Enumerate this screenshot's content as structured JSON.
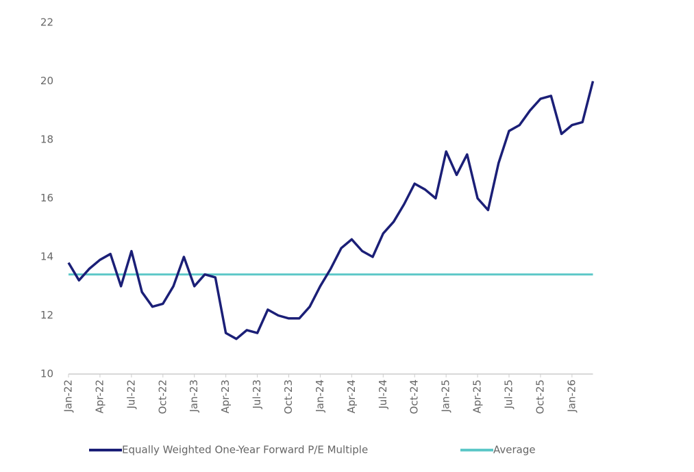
{
  "chart_data": {
    "type": "line",
    "x": [
      "2022-01",
      "2022-02",
      "2022-03",
      "2022-04",
      "2022-05",
      "2022-06",
      "2022-07",
      "2022-08",
      "2022-09",
      "2022-10",
      "2022-11",
      "2022-12",
      "2023-01",
      "2023-02",
      "2023-03",
      "2023-04",
      "2023-05",
      "2023-06",
      "2023-07",
      "2023-08",
      "2023-09",
      "2023-10",
      "2023-11",
      "2023-12",
      "2024-01",
      "2024-02",
      "2024-03",
      "2024-04",
      "2024-05",
      "2024-06",
      "2024-07",
      "2024-08",
      "2024-09",
      "2024-10",
      "2024-11",
      "2024-12",
      "2025-01",
      "2025-02",
      "2025-03",
      "2025-04",
      "2025-05",
      "2025-06",
      "2025-07",
      "2025-08",
      "2025-09",
      "2025-10",
      "2025-11",
      "2025-12",
      "2026-01",
      "2026-02",
      "2026-03"
    ],
    "series": [
      {
        "name": "Equally Weighted One-Year Forward P/E Multiple",
        "color": "#1b1f77",
        "width": 3.5,
        "values": [
          13.8,
          13.2,
          13.6,
          13.9,
          14.1,
          13.0,
          14.2,
          12.8,
          12.3,
          12.4,
          13.0,
          14.0,
          13.0,
          13.4,
          13.3,
          11.4,
          11.2,
          11.5,
          11.4,
          12.2,
          12.0,
          11.9,
          11.9,
          12.3,
          13.0,
          13.6,
          14.3,
          14.6,
          14.2,
          14.0,
          14.8,
          15.2,
          15.8,
          16.5,
          16.3,
          16.0,
          17.6,
          16.8,
          17.5,
          16.0,
          15.6,
          17.2,
          18.3,
          18.5,
          19.0,
          19.4,
          19.5,
          18.2,
          18.5,
          18.6,
          20.0
        ]
      },
      {
        "name": "Average",
        "color": "#5ec8c8",
        "width": 3,
        "values": [
          13.4,
          13.4,
          13.4,
          13.4,
          13.4,
          13.4,
          13.4,
          13.4,
          13.4,
          13.4,
          13.4,
          13.4,
          13.4,
          13.4,
          13.4,
          13.4,
          13.4,
          13.4,
          13.4,
          13.4,
          13.4,
          13.4,
          13.4,
          13.4,
          13.4,
          13.4,
          13.4,
          13.4,
          13.4,
          13.4,
          13.4,
          13.4,
          13.4,
          13.4,
          13.4,
          13.4,
          13.4,
          13.4,
          13.4,
          13.4,
          13.4,
          13.4,
          13.4,
          13.4,
          13.4,
          13.4,
          13.4,
          13.4,
          13.4,
          13.4,
          13.4
        ]
      }
    ],
    "ylim": [
      10,
      22
    ],
    "yticks": [
      10,
      12,
      14,
      16,
      18,
      20,
      22
    ],
    "xticks": [
      {
        "value": "2022-01",
        "label": "Jan-22"
      },
      {
        "value": "2022-04",
        "label": "Apr-22"
      },
      {
        "value": "2022-07",
        "label": "Jul-22"
      },
      {
        "value": "2022-10",
        "label": "Oct-22"
      },
      {
        "value": "2023-01",
        "label": "Jan-23"
      },
      {
        "value": "2023-04",
        "label": "Apr-23"
      },
      {
        "value": "2023-07",
        "label": "Jul-23"
      },
      {
        "value": "2023-10",
        "label": "Oct-23"
      },
      {
        "value": "2024-01",
        "label": "Jan-24"
      },
      {
        "value": "2024-04",
        "label": "Apr-24"
      },
      {
        "value": "2024-07",
        "label": "Jul-24"
      },
      {
        "value": "2024-10",
        "label": "Oct-24"
      },
      {
        "value": "2025-01",
        "label": "Jan-25"
      },
      {
        "value": "2025-04",
        "label": "Apr-25"
      },
      {
        "value": "2025-07",
        "label": "Jul-25"
      },
      {
        "value": "2025-10",
        "label": "Oct-25"
      },
      {
        "value": "2026-01",
        "label": "Jan-26"
      }
    ],
    "grid": false
  }
}
